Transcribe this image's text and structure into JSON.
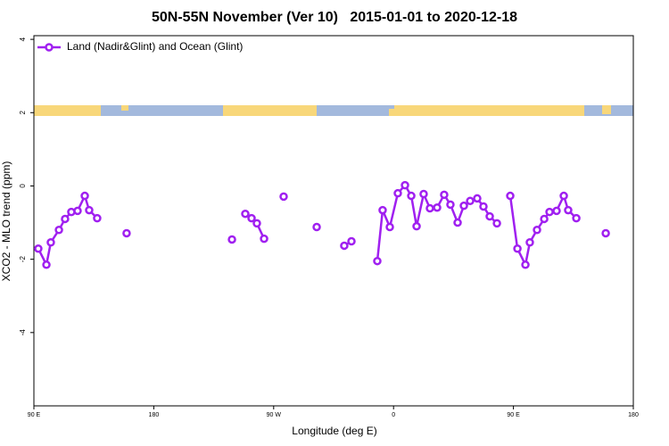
{
  "chart_data": {
    "type": "line",
    "title": "50N-55N November (Ver 10)   2015-01-01 to 2020-12-18",
    "xlabel": "Longitude (deg E)",
    "ylabel": "XCO2 - MLO trend (ppm)",
    "xlim": [
      90,
      540
    ],
    "ylim": [
      -6,
      4.1
    ],
    "xticks": [
      {
        "value": 90,
        "label": "90 E"
      },
      {
        "value": 180,
        "label": "180"
      },
      {
        "value": 270,
        "label": "90 W"
      },
      {
        "value": 360,
        "label": "0"
      },
      {
        "value": 450,
        "label": "90 E"
      },
      {
        "value": 540,
        "label": "180"
      }
    ],
    "yticks": [
      4,
      2,
      0,
      -2,
      -4
    ],
    "legend_position": "top-left",
    "series": [
      {
        "name": "Land (Nadir&Glint) and Ocean (Glint)",
        "color": "#a020f0",
        "x": [
          93.3,
          99.4,
          102.7,
          108.8,
          113.4,
          118.1,
          122.8,
          128.2,
          131.5,
          137.5,
          null,
          159.6,
          null,
          238.7,
          null,
          248.7,
          253.4,
          257.4,
          262.8,
          null,
          277.5,
          null,
          302.3,
          null,
          323,
          328.4,
          null,
          347.8,
          351.8,
          357.2,
          363.2,
          368.6,
          373.3,
          377.3,
          382.6,
          387.3,
          392.7,
          398,
          402.7,
          408.1,
          412.8,
          417.5,
          422.8,
          427.5,
          432.2,
          437.6,
          null,
          447.6,
          453,
          459,
          462.3,
          467.7,
          473.1,
          477.1,
          482.4,
          487.8,
          491.1,
          497.2,
          null,
          519.3
        ],
        "values": [
          -1.71,
          -2.15,
          -1.54,
          -1.2,
          -0.9,
          -0.71,
          -0.68,
          -0.27,
          -0.66,
          -0.88,
          null,
          -1.29,
          null,
          -1.46,
          null,
          -0.76,
          -0.88,
          -1.02,
          -1.44,
          null,
          -0.29,
          null,
          -1.12,
          null,
          -1.63,
          -1.51,
          null,
          -2.05,
          -0.66,
          -1.12,
          -0.2,
          0.02,
          -0.27,
          -1.1,
          -0.22,
          -0.61,
          -0.59,
          -0.24,
          -0.51,
          -1.0,
          -0.54,
          -0.41,
          -0.34,
          -0.56,
          -0.83,
          -1.02,
          null,
          -0.27,
          -1.71,
          -2.15,
          -1.54,
          -1.2,
          -0.9,
          -0.71,
          -0.68,
          -0.27,
          -0.66,
          -0.88,
          null,
          -1.29
        ]
      }
    ]
  }
}
